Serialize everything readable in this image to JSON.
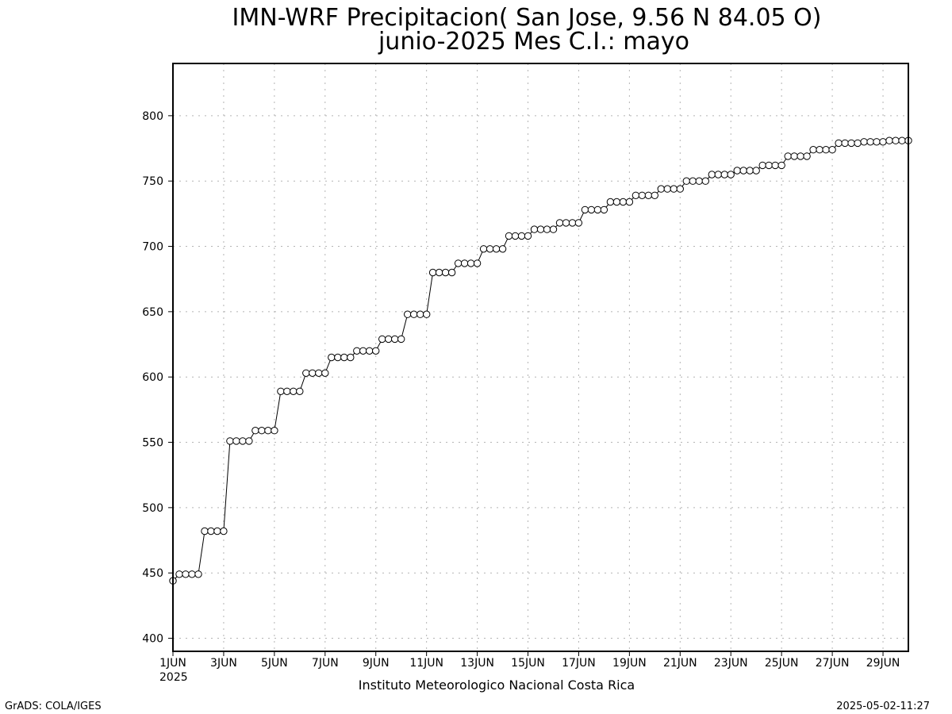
{
  "chart_data": {
    "type": "line",
    "title": "IMN-WRF  Precipitacion( San Jose, 9.56  N 84.05  O)",
    "subtitle": "junio-2025 Mes C.I.: mayo",
    "xlabel": "",
    "ylabel": "",
    "credit": "Instituto Meteorologico Nacional Costa Rica",
    "footer_left": "GrADS: COLA/IGES",
    "footer_right": "2025-05-02-11:27",
    "year_label": "2025",
    "ylim": [
      390,
      840
    ],
    "yticks": [
      400,
      450,
      500,
      550,
      600,
      650,
      700,
      750,
      800
    ],
    "xlim_days": [
      1,
      30
    ],
    "xticks": [
      {
        "day": 1,
        "label": "1JUN"
      },
      {
        "day": 3,
        "label": "3JUN"
      },
      {
        "day": 5,
        "label": "5JUN"
      },
      {
        "day": 7,
        "label": "7JUN"
      },
      {
        "day": 9,
        "label": "9JUN"
      },
      {
        "day": 11,
        "label": "11JUN"
      },
      {
        "day": 13,
        "label": "13JUN"
      },
      {
        "day": 15,
        "label": "15JUN"
      },
      {
        "day": 17,
        "label": "17JUN"
      },
      {
        "day": 19,
        "label": "19JUN"
      },
      {
        "day": 21,
        "label": "21JUN"
      },
      {
        "day": 23,
        "label": "23JUN"
      },
      {
        "day": 25,
        "label": "25JUN"
      },
      {
        "day": 27,
        "label": "27JUN"
      },
      {
        "day": 29,
        "label": "29JUN"
      }
    ],
    "grid": true,
    "values_per_day": 4,
    "series": [
      {
        "values": [
          444,
          449,
          449,
          449,
          449,
          482,
          482,
          482,
          482,
          551,
          551,
          551,
          551,
          559,
          559,
          559,
          559,
          589,
          589,
          589,
          589,
          603,
          603,
          603,
          603,
          615,
          615,
          615,
          615,
          620,
          620,
          620,
          620,
          629,
          629,
          629,
          629,
          648,
          648,
          648,
          648,
          680,
          680,
          680,
          680,
          687,
          687,
          687,
          687,
          698,
          698,
          698,
          698,
          708,
          708,
          708,
          708,
          713,
          713,
          713,
          713,
          718,
          718,
          718,
          718,
          728,
          728,
          728,
          728,
          734,
          734,
          734,
          734,
          739,
          739,
          739,
          739,
          744,
          744,
          744,
          744,
          750,
          750,
          750,
          750,
          755,
          755,
          755,
          755,
          758,
          758,
          758,
          758,
          762,
          762,
          762,
          762,
          769,
          769,
          769,
          769,
          774,
          774,
          774,
          774,
          779,
          779,
          779,
          779,
          780,
          780,
          780,
          780,
          781,
          781,
          781,
          781
        ]
      }
    ]
  }
}
